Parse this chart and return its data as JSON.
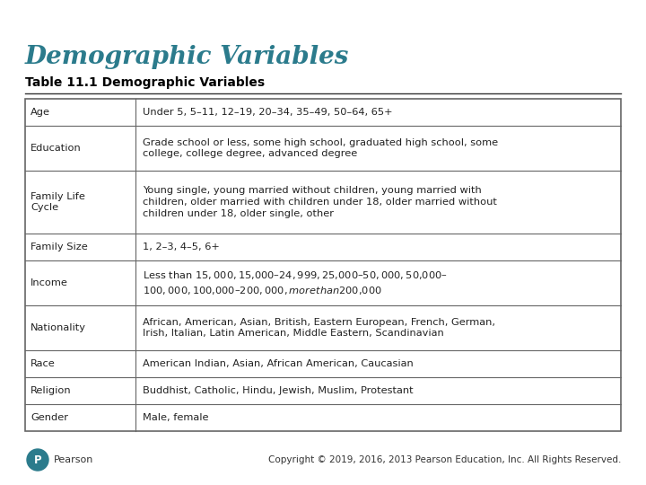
{
  "title": "Demographic Variables",
  "subtitle": "Table 11.1 Demographic Variables",
  "title_color": "#2B7B8C",
  "subtitle_color": "#000000",
  "bg_color": "#FFFFFF",
  "table_rows": [
    [
      "Age",
      "Under 5, 5–11, 12–19, 20–34, 35–49, 50–64, 65+"
    ],
    [
      "Education",
      "Grade school or less, some high school, graduated high school, some\ncollege, college degree, advanced degree"
    ],
    [
      "Family Life\nCycle",
      "Young single, young married without children, young married with\nchildren, older married with children under 18, older married without\nchildren under 18, older single, other"
    ],
    [
      "Family Size",
      "1, 2–3, 4–5, 6+"
    ],
    [
      "Income",
      "Less than $15,000, $15,000–$24,999, $25,000–$50,000, $50,000–\n$100,000, $100,000–$200,000, more than $200,000"
    ],
    [
      "Nationality",
      "African, American, Asian, British, Eastern European, French, German,\nIrish, Italian, Latin American, Middle Eastern, Scandinavian"
    ],
    [
      "Race",
      "American Indian, Asian, African American, Caucasian"
    ],
    [
      "Religion",
      "Buddhist, Catholic, Hindu, Jewish, Muslim, Protestant"
    ],
    [
      "Gender",
      "Male, female"
    ]
  ],
  "footer_text": "Copyright © 2019, 2016, 2013 Pearson Education, Inc. All Rights Reserved.",
  "table_border_color": "#666666",
  "cell_text_color": "#222222",
  "cell_fontsize": 8.2,
  "title_fontsize": 20,
  "subtitle_fontsize": 10,
  "logo_color": "#2B7B8C"
}
